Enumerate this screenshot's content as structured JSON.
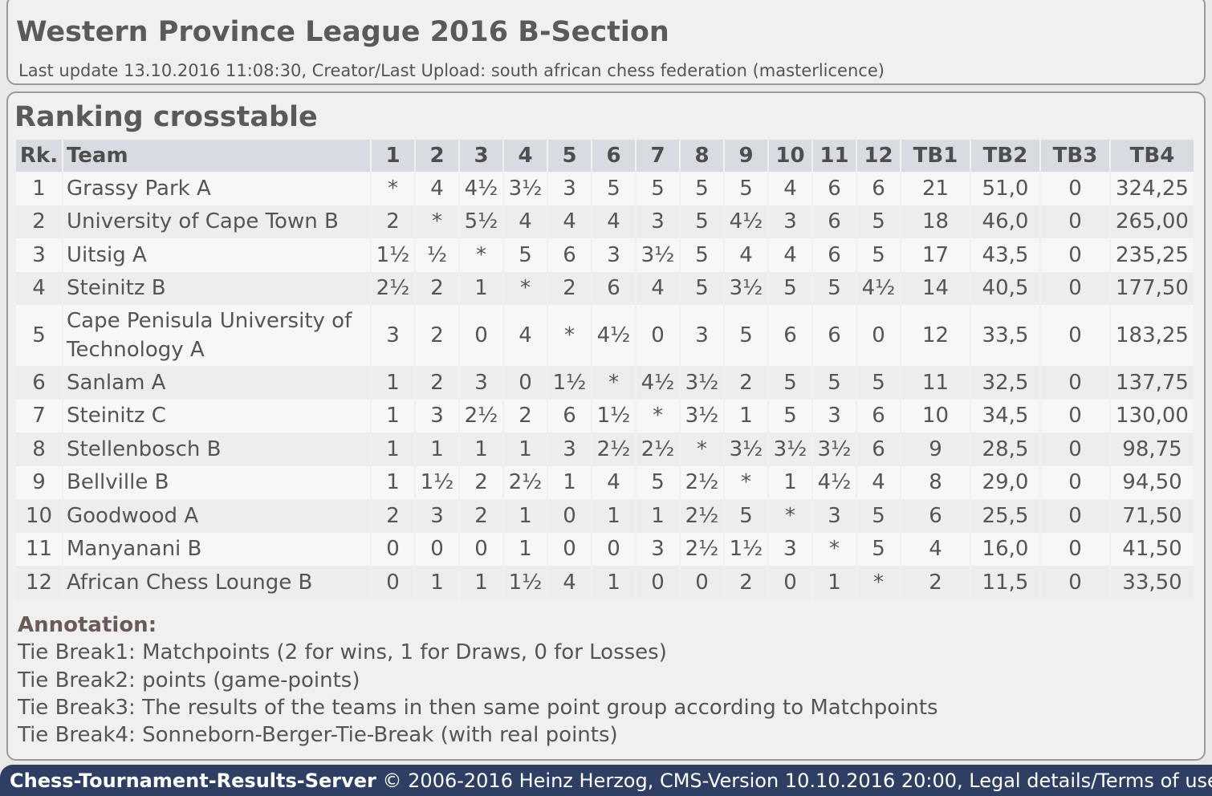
{
  "header": {
    "title": "Western Province League 2016 B-Section",
    "subtitle": "Last update 13.10.2016 11:08:30, Creator/Last Upload: south african chess federation (masterlicence)"
  },
  "section_title": "Ranking crosstable",
  "table": {
    "headers": [
      "Rk.",
      "Team",
      "1",
      "2",
      "3",
      "4",
      "5",
      "6",
      "7",
      "8",
      "9",
      "10",
      "11",
      "12",
      "TB1",
      "TB2",
      "TB3",
      "TB4"
    ],
    "rows": [
      [
        "1",
        "Grassy Park A",
        "*",
        "4",
        "4½",
        "3½",
        "3",
        "5",
        "5",
        "5",
        "5",
        "4",
        "6",
        "6",
        "21",
        "51,0",
        "0",
        "324,25"
      ],
      [
        "2",
        "University of Cape Town B",
        "2",
        "*",
        "5½",
        "4",
        "4",
        "4",
        "3",
        "5",
        "4½",
        "3",
        "6",
        "5",
        "18",
        "46,0",
        "0",
        "265,00"
      ],
      [
        "3",
        "Uitsig A",
        "1½",
        "½",
        "*",
        "5",
        "6",
        "3",
        "3½",
        "5",
        "4",
        "4",
        "6",
        "5",
        "17",
        "43,5",
        "0",
        "235,25"
      ],
      [
        "4",
        "Steinitz B",
        "2½",
        "2",
        "1",
        "*",
        "2",
        "6",
        "4",
        "5",
        "3½",
        "5",
        "5",
        "4½",
        "14",
        "40,5",
        "0",
        "177,50"
      ],
      [
        "5",
        "Cape Penisula University of Technology A",
        "3",
        "2",
        "0",
        "4",
        "*",
        "4½",
        "0",
        "3",
        "5",
        "6",
        "6",
        "0",
        "12",
        "33,5",
        "0",
        "183,25"
      ],
      [
        "6",
        "Sanlam A",
        "1",
        "2",
        "3",
        "0",
        "1½",
        "*",
        "4½",
        "3½",
        "2",
        "5",
        "5",
        "5",
        "11",
        "32,5",
        "0",
        "137,75"
      ],
      [
        "7",
        "Steinitz C",
        "1",
        "3",
        "2½",
        "2",
        "6",
        "1½",
        "*",
        "3½",
        "1",
        "5",
        "3",
        "6",
        "10",
        "34,5",
        "0",
        "130,00"
      ],
      [
        "8",
        "Stellenbosch B",
        "1",
        "1",
        "1",
        "1",
        "3",
        "2½",
        "2½",
        "*",
        "3½",
        "3½",
        "3½",
        "6",
        "9",
        "28,5",
        "0",
        "98,75"
      ],
      [
        "9",
        "Bellville B",
        "1",
        "1½",
        "2",
        "2½",
        "1",
        "4",
        "5",
        "2½",
        "*",
        "1",
        "4½",
        "4",
        "8",
        "29,0",
        "0",
        "94,50"
      ],
      [
        "10",
        "Goodwood A",
        "2",
        "3",
        "2",
        "1",
        "0",
        "1",
        "1",
        "2½",
        "5",
        "*",
        "3",
        "5",
        "6",
        "25,5",
        "0",
        "71,50"
      ],
      [
        "11",
        "Manyanani B",
        "0",
        "0",
        "0",
        "1",
        "0",
        "0",
        "3",
        "2½",
        "1½",
        "3",
        "*",
        "5",
        "4",
        "16,0",
        "0",
        "41,50"
      ],
      [
        "12",
        "African Chess Lounge B",
        "0",
        "1",
        "1",
        "1½",
        "4",
        "1",
        "0",
        "0",
        "2",
        "0",
        "1",
        "*",
        "2",
        "11,5",
        "0",
        "33,50"
      ]
    ]
  },
  "annotation": {
    "title": "Annotation:",
    "lines": [
      "Tie Break1: Matchpoints (2 for wins, 1 for Draws, 0 for Losses)",
      "Tie Break2: points (game-points)",
      "Tie Break3: The results of the teams in then same point group according to Matchpoints",
      "Tie Break4: Sonneborn-Berger-Tie-Break (with real points)"
    ]
  },
  "footer": {
    "brand": "Chess-Tournament-Results-Server",
    "copyright": " © 2006-2016 Heinz Herzog, CMS-Version 10.10.2016 20:00, ",
    "link": "Legal details/Terms of use"
  }
}
